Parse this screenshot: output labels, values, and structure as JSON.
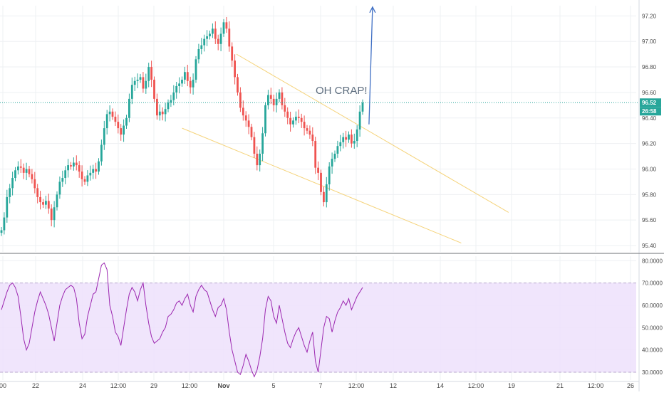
{
  "chart_data": [
    {
      "type": "candlestick",
      "title": "",
      "ylim": [
        95.35,
        97.28
      ],
      "y_ticks": [
        "97.20",
        "97.00",
        "96.80",
        "96.60",
        "96.40",
        "96.20",
        "96.00",
        "95.80",
        "95.60",
        "95.40"
      ],
      "x_ticks": [
        "00",
        "22",
        "24",
        "12:00",
        "29",
        "12:00",
        "Nov",
        "5",
        "7",
        "12:00",
        "12",
        "14",
        "12:00",
        "19",
        "21",
        "12:00",
        "26"
      ],
      "last_price": "96.52",
      "countdown": "26:58",
      "annotation": "OH CRAP!",
      "channel_upper": [
        [
          1.0,
          96.9
        ],
        [
          2.15,
          95.66
        ]
      ],
      "channel_lower": [
        [
          0.77,
          96.32
        ],
        [
          1.95,
          95.42
        ]
      ],
      "breakout_arrow": [
        [
          1.56,
          96.35
        ],
        [
          1.575,
          97.27
        ]
      ],
      "close_series": [
        95.52,
        95.62,
        95.78,
        95.85,
        95.93,
        95.99,
        96.02,
        96.01,
        95.97,
        96.0,
        95.96,
        95.92,
        95.85,
        95.78,
        95.74,
        95.72,
        95.75,
        95.69,
        95.6,
        95.7,
        95.8,
        95.9,
        95.93,
        95.99,
        96.03,
        96.02,
        96.05,
        96.03,
        95.98,
        95.92,
        95.9,
        95.95,
        95.97,
        96.0,
        95.98,
        96.06,
        96.19,
        96.32,
        96.43,
        96.45,
        96.41,
        96.37,
        96.32,
        96.27,
        96.34,
        96.4,
        96.55,
        96.66,
        96.69,
        96.7,
        96.72,
        96.63,
        96.69,
        96.8,
        96.7,
        96.55,
        96.42,
        96.45,
        96.43,
        96.47,
        96.52,
        96.54,
        96.6,
        96.65,
        96.67,
        96.7,
        96.76,
        96.69,
        96.64,
        96.7,
        96.86,
        96.94,
        96.97,
        97.02,
        97.04,
        97.06,
        97.1,
        97.02,
        96.98,
        97.06,
        97.15,
        97.1,
        96.96,
        96.85,
        96.72,
        96.6,
        96.48,
        96.42,
        96.38,
        96.33,
        96.25,
        96.12,
        96.03,
        96.12,
        96.28,
        96.5,
        96.58,
        96.55,
        96.5,
        96.55,
        96.6,
        96.5,
        96.45,
        96.4,
        96.35,
        96.38,
        96.41,
        96.4,
        96.37,
        96.32,
        96.3,
        96.27,
        96.22,
        96.01,
        95.97,
        95.82,
        95.74,
        95.88,
        96.02,
        96.08,
        96.12,
        96.18,
        96.21,
        96.25,
        96.23,
        96.27,
        96.2,
        96.22,
        96.31,
        96.45,
        96.52
      ]
    },
    {
      "type": "line",
      "title": "",
      "ylim": [
        26.5,
        82.0
      ],
      "y_ticks": [
        "80.0000",
        "70.0000",
        "60.0000",
        "50.0000",
        "40.0000",
        "30.0000"
      ],
      "band": [
        30,
        70
      ],
      "series": [
        {
          "values": [
            58,
            62,
            66,
            69,
            70,
            68,
            64,
            55,
            45,
            40,
            43,
            50,
            57,
            62,
            66,
            63,
            60,
            56,
            50,
            44,
            52,
            60,
            64,
            67,
            68,
            69,
            68,
            63,
            52,
            45,
            47,
            55,
            60,
            65,
            66,
            72,
            78,
            79,
            76,
            60,
            55,
            48,
            46,
            42,
            50,
            58,
            65,
            68,
            66,
            62,
            67,
            70,
            60,
            52,
            46,
            43,
            44,
            45,
            48,
            50,
            55,
            56,
            58,
            61,
            62,
            60,
            63,
            65,
            60,
            57,
            64,
            67,
            69,
            67,
            66,
            62,
            58,
            55,
            59,
            60,
            63,
            58,
            48,
            40,
            35,
            30,
            29,
            33,
            38,
            35,
            31,
            28,
            31,
            37,
            45,
            58,
            64,
            62,
            55,
            52,
            60,
            54,
            48,
            43,
            41,
            45,
            48,
            50,
            46,
            42,
            39,
            44,
            48,
            35,
            30,
            40,
            50,
            55,
            54,
            48,
            53,
            57,
            59,
            62,
            60,
            63,
            58,
            61,
            64,
            66,
            68
          ]
        }
      ]
    }
  ]
}
